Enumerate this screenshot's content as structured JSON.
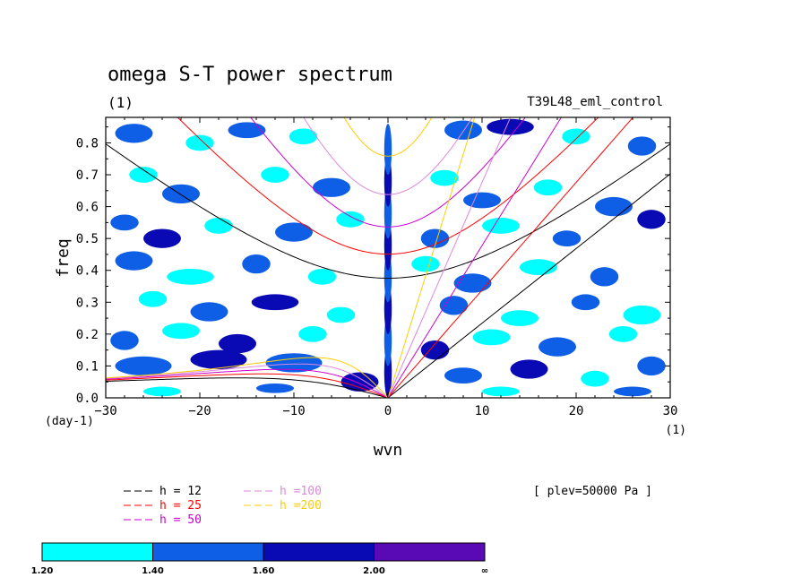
{
  "chart_data": {
    "type": "heatmap",
    "title": "omega S-T power spectrum",
    "subtitle": "(1)",
    "case_label": "T39L48_eml_control",
    "level_label": "[ plev=50000 Pa ]",
    "xlabel": "wvn",
    "ylabel": "freq",
    "x_unit": "(1)",
    "y_unit": "(day-1)",
    "xlim": [
      -30,
      30
    ],
    "ylim": [
      0,
      0.88
    ],
    "x_ticks": [
      -30,
      -20,
      -10,
      0,
      10,
      20,
      30
    ],
    "y_ticks": [
      0.0,
      0.1,
      0.2,
      0.3,
      0.4,
      0.5,
      0.6,
      0.7,
      0.8
    ],
    "y_tick_labels": [
      "0.0",
      "0.1",
      "0.2",
      "0.3",
      "0.4",
      "0.5",
      "0.6",
      "0.7",
      "0.8"
    ],
    "grid": false,
    "colorbar": {
      "boundaries": [
        "1.20",
        "1.40",
        "1.60",
        "2.00",
        "∞"
      ],
      "colors": [
        "#00ffff",
        "#0f5fe6",
        "#0a0ab4",
        "#5a0ab4"
      ]
    },
    "dispersion_curves": [
      {
        "label": "h = 12",
        "equivalent_depth_m": 12,
        "color": "#000000"
      },
      {
        "label": "h = 25",
        "equivalent_depth_m": 25,
        "color": "#ff0000"
      },
      {
        "label": "h = 50",
        "equivalent_depth_m": 50,
        "color": "#cc00cc"
      },
      {
        "label": "h =100",
        "equivalent_depth_m": 100,
        "color": "#dd88dd"
      },
      {
        "label": "h =200",
        "equivalent_depth_m": 200,
        "color": "#ffcc00"
      }
    ],
    "power_regions": [
      {
        "center": [
          0,
          0.08
        ],
        "extent": [
          0.4,
          0.08
        ],
        "level": 2
      },
      {
        "center": [
          0,
          0.18
        ],
        "extent": [
          0.4,
          0.08
        ],
        "level": 1
      },
      {
        "center": [
          0,
          0.28
        ],
        "extent": [
          0.4,
          0.08
        ],
        "level": 2
      },
      {
        "center": [
          0,
          0.38
        ],
        "extent": [
          0.4,
          0.08
        ],
        "level": 1
      },
      {
        "center": [
          0,
          0.48
        ],
        "extent": [
          0.4,
          0.08
        ],
        "level": 2
      },
      {
        "center": [
          0,
          0.58
        ],
        "extent": [
          0.4,
          0.08
        ],
        "level": 1
      },
      {
        "center": [
          0,
          0.68
        ],
        "extent": [
          0.4,
          0.08
        ],
        "level": 2
      },
      {
        "center": [
          0,
          0.78
        ],
        "extent": [
          0.4,
          0.08
        ],
        "level": 1
      },
      {
        "center": [
          -27,
          0.83
        ],
        "extent": [
          2,
          0.03
        ],
        "level": 1
      },
      {
        "center": [
          -20,
          0.8
        ],
        "extent": [
          1.5,
          0.025
        ],
        "level": 0
      },
      {
        "center": [
          -15,
          0.84
        ],
        "extent": [
          2,
          0.025
        ],
        "level": 1
      },
      {
        "center": [
          -9,
          0.82
        ],
        "extent": [
          1.5,
          0.025
        ],
        "level": 0
      },
      {
        "center": [
          8,
          0.84
        ],
        "extent": [
          2,
          0.03
        ],
        "level": 1
      },
      {
        "center": [
          13,
          0.85
        ],
        "extent": [
          2.5,
          0.025
        ],
        "level": 2
      },
      {
        "center": [
          20,
          0.82
        ],
        "extent": [
          1.5,
          0.025
        ],
        "level": 0
      },
      {
        "center": [
          27,
          0.79
        ],
        "extent": [
          1.5,
          0.03
        ],
        "level": 1
      },
      {
        "center": [
          -26,
          0.7
        ],
        "extent": [
          1.5,
          0.025
        ],
        "level": 0
      },
      {
        "center": [
          -22,
          0.64
        ],
        "extent": [
          2,
          0.03
        ],
        "level": 1
      },
      {
        "center": [
          -12,
          0.7
        ],
        "extent": [
          1.5,
          0.025
        ],
        "level": 0
      },
      {
        "center": [
          -6,
          0.66
        ],
        "extent": [
          2,
          0.03
        ],
        "level": 1
      },
      {
        "center": [
          6,
          0.69
        ],
        "extent": [
          1.5,
          0.025
        ],
        "level": 0
      },
      {
        "center": [
          10,
          0.62
        ],
        "extent": [
          2,
          0.025
        ],
        "level": 1
      },
      {
        "center": [
          17,
          0.66
        ],
        "extent": [
          1.5,
          0.025
        ],
        "level": 0
      },
      {
        "center": [
          24,
          0.6
        ],
        "extent": [
          2,
          0.03
        ],
        "level": 1
      },
      {
        "center": [
          -28,
          0.55
        ],
        "extent": [
          1.5,
          0.025
        ],
        "level": 1
      },
      {
        "center": [
          -24,
          0.5
        ],
        "extent": [
          2,
          0.03
        ],
        "level": 2
      },
      {
        "center": [
          -18,
          0.54
        ],
        "extent": [
          1.5,
          0.025
        ],
        "level": 0
      },
      {
        "center": [
          -10,
          0.52
        ],
        "extent": [
          2,
          0.03
        ],
        "level": 1
      },
      {
        "center": [
          -4,
          0.56
        ],
        "extent": [
          1.5,
          0.025
        ],
        "level": 0
      },
      {
        "center": [
          5,
          0.5
        ],
        "extent": [
          1.5,
          0.03
        ],
        "level": 1
      },
      {
        "center": [
          12,
          0.54
        ],
        "extent": [
          2,
          0.025
        ],
        "level": 0
      },
      {
        "center": [
          19,
          0.5
        ],
        "extent": [
          1.5,
          0.025
        ],
        "level": 1
      },
      {
        "center": [
          28,
          0.56
        ],
        "extent": [
          1.5,
          0.03
        ],
        "level": 2
      },
      {
        "center": [
          -27,
          0.43
        ],
        "extent": [
          2,
          0.03
        ],
        "level": 1
      },
      {
        "center": [
          -21,
          0.38
        ],
        "extent": [
          2.5,
          0.025
        ],
        "level": 0
      },
      {
        "center": [
          -14,
          0.42
        ],
        "extent": [
          1.5,
          0.03
        ],
        "level": 1
      },
      {
        "center": [
          -7,
          0.38
        ],
        "extent": [
          1.5,
          0.025
        ],
        "level": 0
      },
      {
        "center": [
          4,
          0.42
        ],
        "extent": [
          1.5,
          0.025
        ],
        "level": 0
      },
      {
        "center": [
          9,
          0.36
        ],
        "extent": [
          2,
          0.03
        ],
        "level": 1
      },
      {
        "center": [
          16,
          0.41
        ],
        "extent": [
          2,
          0.025
        ],
        "level": 0
      },
      {
        "center": [
          23,
          0.38
        ],
        "extent": [
          1.5,
          0.03
        ],
        "level": 1
      },
      {
        "center": [
          -25,
          0.31
        ],
        "extent": [
          1.5,
          0.025
        ],
        "level": 0
      },
      {
        "center": [
          -19,
          0.27
        ],
        "extent": [
          2,
          0.03
        ],
        "level": 1
      },
      {
        "center": [
          -12,
          0.3
        ],
        "extent": [
          2.5,
          0.025
        ],
        "level": 2
      },
      {
        "center": [
          -5,
          0.26
        ],
        "extent": [
          1.5,
          0.025
        ],
        "level": 0
      },
      {
        "center": [
          7,
          0.29
        ],
        "extent": [
          1.5,
          0.03
        ],
        "level": 1
      },
      {
        "center": [
          14,
          0.25
        ],
        "extent": [
          2,
          0.025
        ],
        "level": 0
      },
      {
        "center": [
          21,
          0.3
        ],
        "extent": [
          1.5,
          0.025
        ],
        "level": 1
      },
      {
        "center": [
          27,
          0.26
        ],
        "extent": [
          2,
          0.03
        ],
        "level": 0
      },
      {
        "center": [
          -28,
          0.18
        ],
        "extent": [
          1.5,
          0.03
        ],
        "level": 1
      },
      {
        "center": [
          -22,
          0.21
        ],
        "extent": [
          2,
          0.025
        ],
        "level": 0
      },
      {
        "center": [
          -16,
          0.17
        ],
        "extent": [
          2,
          0.03
        ],
        "level": 2
      },
      {
        "center": [
          -8,
          0.2
        ],
        "extent": [
          1.5,
          0.025
        ],
        "level": 0
      },
      {
        "center": [
          5,
          0.15
        ],
        "extent": [
          1.5,
          0.03
        ],
        "level": 2
      },
      {
        "center": [
          11,
          0.19
        ],
        "extent": [
          2,
          0.025
        ],
        "level": 0
      },
      {
        "center": [
          18,
          0.16
        ],
        "extent": [
          2,
          0.03
        ],
        "level": 1
      },
      {
        "center": [
          25,
          0.2
        ],
        "extent": [
          1.5,
          0.025
        ],
        "level": 0
      },
      {
        "center": [
          -26,
          0.1
        ],
        "extent": [
          3,
          0.03
        ],
        "level": 1
      },
      {
        "center": [
          -18,
          0.12
        ],
        "extent": [
          3,
          0.03
        ],
        "level": 2
      },
      {
        "center": [
          -10,
          0.11
        ],
        "extent": [
          3,
          0.03
        ],
        "level": 1
      },
      {
        "center": [
          -3,
          0.05
        ],
        "extent": [
          2,
          0.03
        ],
        "level": 2
      },
      {
        "center": [
          8,
          0.07
        ],
        "extent": [
          2,
          0.025
        ],
        "level": 1
      },
      {
        "center": [
          15,
          0.09
        ],
        "extent": [
          2,
          0.03
        ],
        "level": 2
      },
      {
        "center": [
          22,
          0.06
        ],
        "extent": [
          1.5,
          0.025
        ],
        "level": 0
      },
      {
        "center": [
          28,
          0.1
        ],
        "extent": [
          1.5,
          0.03
        ],
        "level": 1
      },
      {
        "center": [
          -24,
          0.02
        ],
        "extent": [
          2,
          0.015
        ],
        "level": 0
      },
      {
        "center": [
          -12,
          0.03
        ],
        "extent": [
          2,
          0.015
        ],
        "level": 1
      },
      {
        "center": [
          12,
          0.02
        ],
        "extent": [
          2,
          0.015
        ],
        "level": 0
      },
      {
        "center": [
          26,
          0.02
        ],
        "extent": [
          2,
          0.015
        ],
        "level": 1
      }
    ]
  }
}
